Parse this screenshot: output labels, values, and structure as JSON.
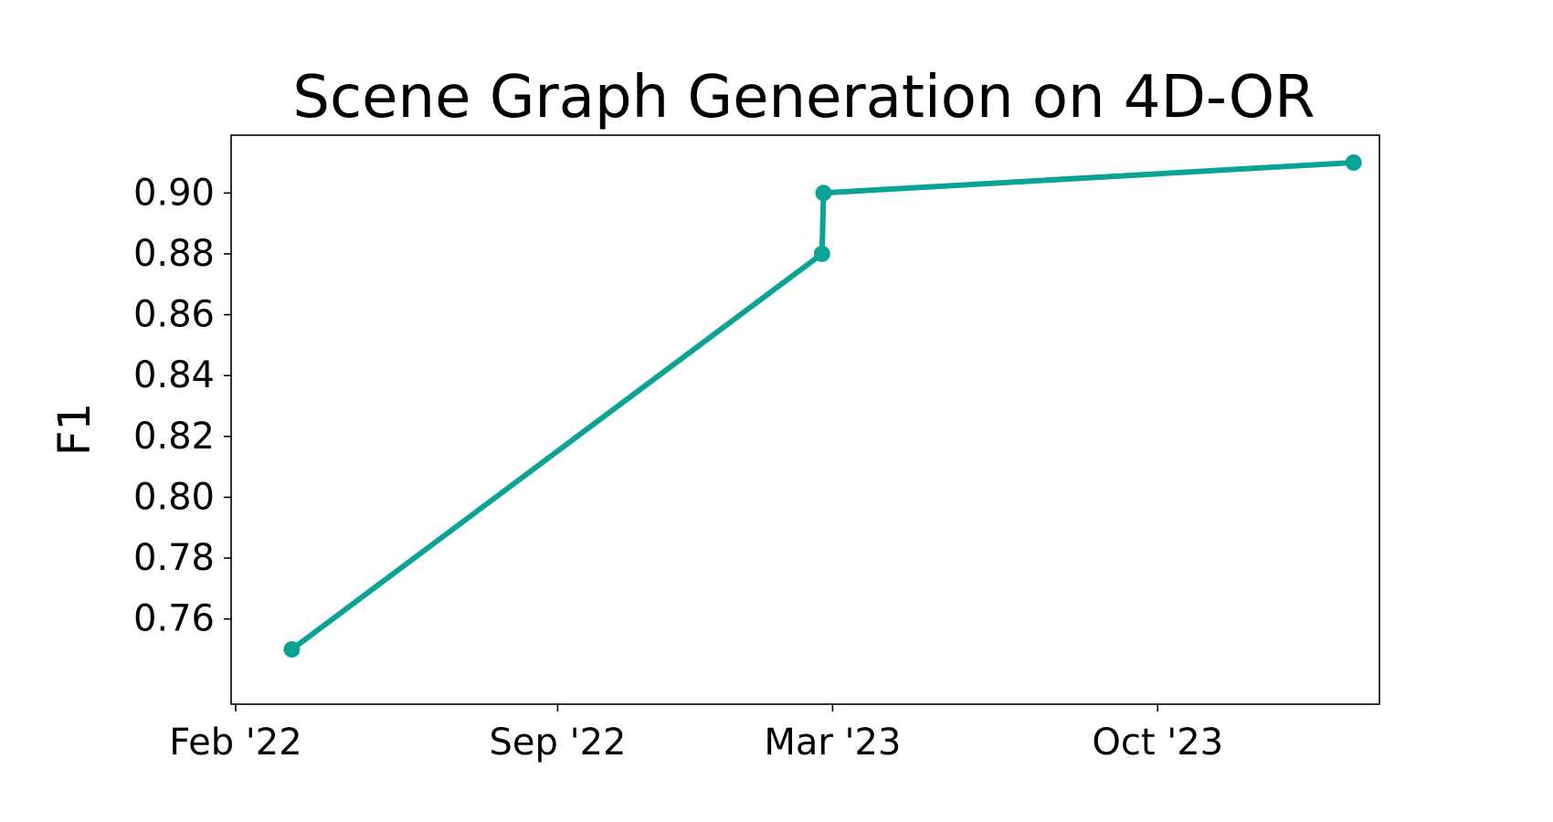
{
  "chart_data": {
    "type": "line",
    "title": "Scene Graph Generation on 4D-OR",
    "xlabel": "",
    "ylabel": "F1",
    "x_type": "date",
    "xlim": [
      "2022-01-29",
      "2024-02-24"
    ],
    "ylim": [
      0.732,
      0.919
    ],
    "xticks": [
      {
        "value": "2022-02-01",
        "label": "Feb '22"
      },
      {
        "value": "2022-09-01",
        "label": "Sep '22"
      },
      {
        "value": "2023-03-01",
        "label": "Mar '23"
      },
      {
        "value": "2023-10-01",
        "label": "Oct '23"
      }
    ],
    "yticks": [
      {
        "value": 0.76,
        "label": "0.76"
      },
      {
        "value": 0.78,
        "label": "0.78"
      },
      {
        "value": 0.8,
        "label": "0.80"
      },
      {
        "value": 0.82,
        "label": "0.82"
      },
      {
        "value": 0.84,
        "label": "0.84"
      },
      {
        "value": 0.86,
        "label": "0.86"
      },
      {
        "value": 0.88,
        "label": "0.88"
      },
      {
        "value": 0.9,
        "label": "0.90"
      }
    ],
    "grid": false,
    "series": [
      {
        "color": "#0aa396",
        "marker": "circle",
        "points": [
          {
            "x": "2022-03-10",
            "y": 0.75
          },
          {
            "x": "2023-02-22",
            "y": 0.88
          },
          {
            "x": "2023-02-23",
            "y": 0.9
          },
          {
            "x": "2024-02-07",
            "y": 0.91
          }
        ]
      }
    ]
  }
}
